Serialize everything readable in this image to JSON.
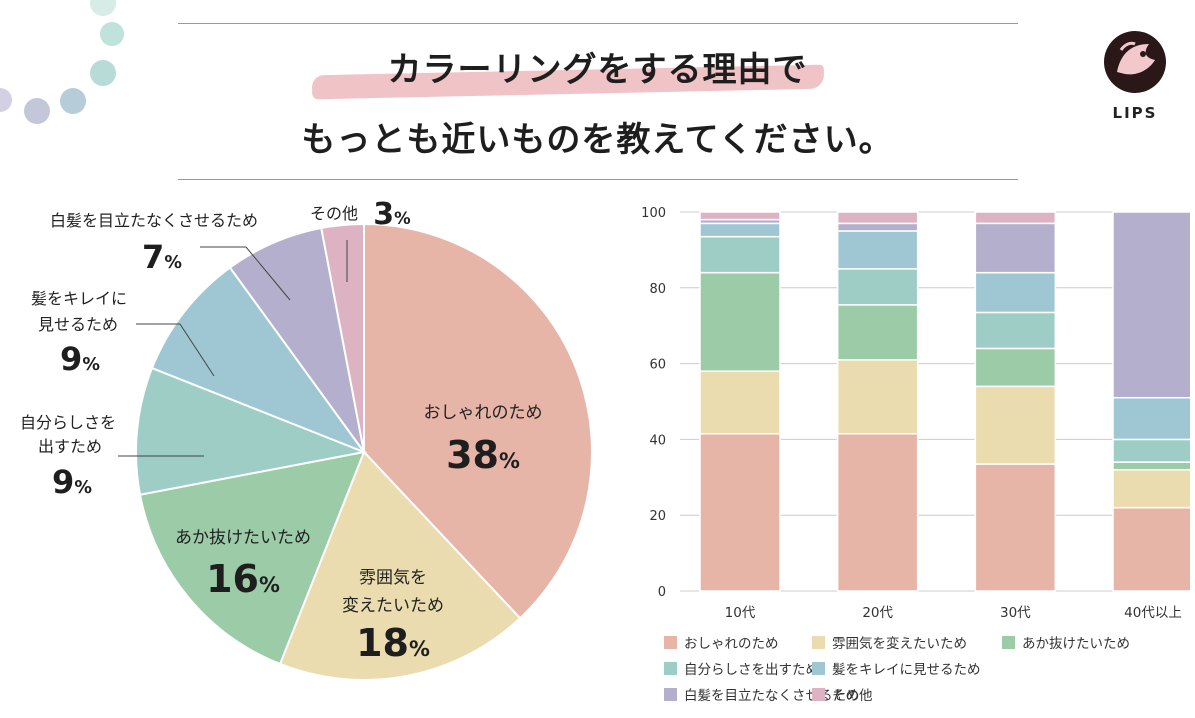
{
  "title": {
    "line1_highlight": "カラーリングをする理由",
    "line1_rest": "で",
    "line2": "もっとも近いものを教えてください。"
  },
  "logo": {
    "text": "LIPS"
  },
  "colors": {
    "fashion": "#e6b5a8",
    "atmosphere": "#eadcae",
    "less_red": "#9ccba8",
    "self": "#9dcdc5",
    "pretty": "#9ec7d3",
    "hide_gray": "#b3afcc",
    "other": "#ddb2c2"
  },
  "chart_data": [
    {
      "type": "pie",
      "title": "カラーリングをする理由でもっとも近いものを教えてください。",
      "slices": [
        {
          "label": "おしゃれのため",
          "value": 38,
          "value_text": "38",
          "unit": "%",
          "color": "#e6b5a8"
        },
        {
          "label": "雰囲気を変えたいため",
          "value": 18,
          "value_text": "18",
          "unit": "%",
          "color": "#eadcae"
        },
        {
          "label": "あか抜けたいため",
          "value": 16,
          "value_text": "16",
          "unit": "%",
          "color": "#9ccba8"
        },
        {
          "label": "自分らしさを出すため",
          "value": 9,
          "value_text": "9",
          "unit": "%",
          "color": "#9dcdc5"
        },
        {
          "label": "髪をキレイに見せるため",
          "value": 9,
          "value_text": "9",
          "unit": "%",
          "color": "#9ec7d3"
        },
        {
          "label": "白髪を目立たなくさせるため",
          "value": 7,
          "value_text": "7",
          "unit": "%",
          "color": "#b3afcc"
        },
        {
          "label": "その他",
          "value": 3,
          "value_text": "3",
          "unit": "%",
          "color": "#ddb2c2"
        }
      ],
      "label_lines": {
        "atmosphere": [
          "雰囲気を",
          "変えたいため"
        ],
        "self": [
          "自分らしさを",
          "出すため"
        ],
        "pretty": [
          "髪をキレイに",
          "見せるため"
        ]
      }
    },
    {
      "type": "bar",
      "stacked": true,
      "categories": [
        "10代",
        "20代",
        "30代",
        "40代以上"
      ],
      "ylim": [
        0,
        100
      ],
      "yticks": [
        "0",
        "20",
        "40",
        "60",
        "80",
        "100"
      ],
      "series": [
        {
          "name": "おしゃれのため",
          "color": "#e6b5a8",
          "values": [
            41.5,
            41.5,
            33.5,
            22
          ]
        },
        {
          "name": "雰囲気を変えたいため",
          "color": "#eadcae",
          "values": [
            16.5,
            19.5,
            20.5,
            10
          ]
        },
        {
          "name": "あか抜けたいため",
          "color": "#9ccba8",
          "values": [
            26,
            14.5,
            10,
            2
          ]
        },
        {
          "name": "自分らしさを出すため",
          "color": "#9dcdc5",
          "values": [
            9.5,
            9.5,
            9.5,
            6
          ]
        },
        {
          "name": "髪をキレイに見せるため",
          "color": "#9ec7d3",
          "values": [
            3.5,
            10,
            10.5,
            11
          ]
        },
        {
          "name": "白髪を目立たなくさせるため",
          "color": "#b3afcc",
          "values": [
            1,
            2,
            13,
            49
          ]
        },
        {
          "name": "その他",
          "color": "#ddb2c2",
          "values": [
            2,
            3,
            3,
            0
          ]
        }
      ]
    }
  ]
}
